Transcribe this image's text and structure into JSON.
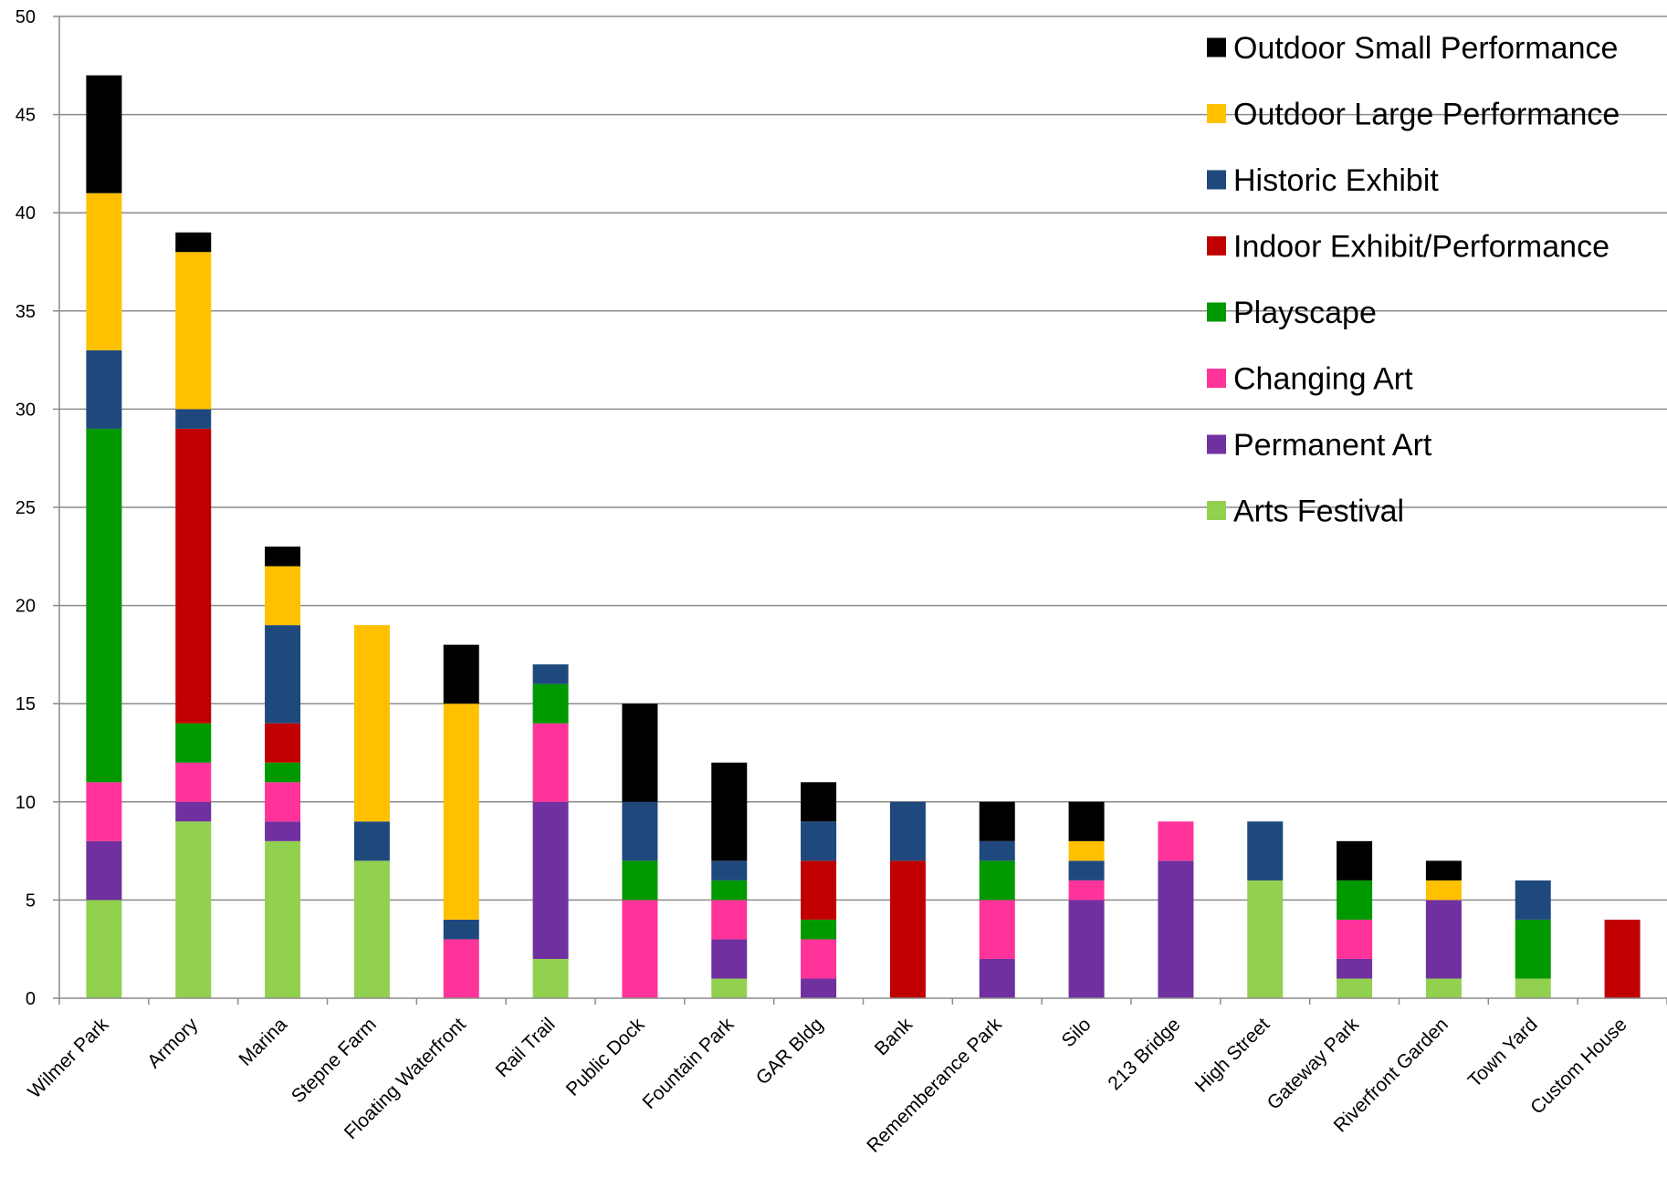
{
  "chart_data": {
    "type": "bar",
    "stacked": true,
    "ylim": [
      0,
      50
    ],
    "y_ticks": [
      0,
      5,
      10,
      15,
      20,
      25,
      30,
      35,
      40,
      45,
      50
    ],
    "grid": true,
    "legend_position": "top-right",
    "categories": [
      "Wilmer Park",
      "Armory",
      "Marina",
      "Stepne Farm",
      "Floating Waterfront",
      "Rail Trail",
      "Public Dock",
      "Fountain Park",
      "GAR Bldg",
      "Bank",
      "Rememberance Park",
      "Silo",
      "213 Bridge",
      "High Street",
      "Gateway Park",
      "Riverfront Garden",
      "Town Yard",
      "Custom House"
    ],
    "series": [
      {
        "name": "Arts Festival",
        "color": "#92d050",
        "values": [
          5,
          9,
          8,
          7,
          0,
          2,
          0,
          1,
          0,
          0,
          0,
          0,
          0,
          6,
          1,
          1,
          1,
          0
        ]
      },
      {
        "name": "Permanent Art",
        "color": "#7030a0",
        "values": [
          3,
          1,
          1,
          0,
          0,
          8,
          0,
          2,
          1,
          0,
          2,
          5,
          7,
          0,
          1,
          4,
          0,
          0
        ]
      },
      {
        "name": "Changing Art",
        "color": "#ff3399",
        "values": [
          3,
          2,
          2,
          0,
          3,
          4,
          5,
          2,
          2,
          0,
          3,
          1,
          2,
          0,
          2,
          0,
          0,
          0
        ]
      },
      {
        "name": "Playscape",
        "color": "#009900",
        "values": [
          18,
          2,
          1,
          0,
          0,
          2,
          2,
          1,
          1,
          0,
          2,
          0,
          0,
          0,
          2,
          0,
          3,
          0
        ]
      },
      {
        "name": "Indoor Exhibit/Performance",
        "color": "#c00000",
        "values": [
          0,
          15,
          2,
          0,
          0,
          0,
          0,
          0,
          3,
          7,
          0,
          0,
          0,
          0,
          0,
          0,
          0,
          4
        ]
      },
      {
        "name": "Historic Exhibit",
        "color": "#1f497d",
        "values": [
          4,
          1,
          5,
          2,
          1,
          1,
          3,
          1,
          2,
          3,
          1,
          1,
          0,
          3,
          0,
          0,
          2,
          0
        ]
      },
      {
        "name": "Outdoor Large Performance",
        "color": "#ffc000",
        "values": [
          8,
          8,
          3,
          10,
          11,
          0,
          0,
          0,
          0,
          0,
          0,
          1,
          0,
          0,
          0,
          1,
          0,
          0
        ]
      },
      {
        "name": "Outdoor Small Performance",
        "color": "#000000",
        "values": [
          6,
          1,
          1,
          0,
          3,
          0,
          5,
          5,
          2,
          0,
          2,
          2,
          0,
          0,
          2,
          1,
          0,
          0
        ]
      }
    ]
  }
}
